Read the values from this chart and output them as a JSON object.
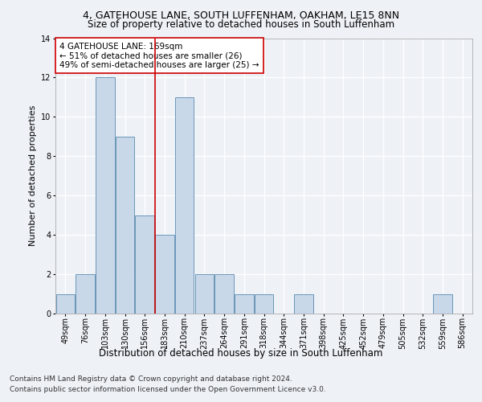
{
  "title1": "4, GATEHOUSE LANE, SOUTH LUFFENHAM, OAKHAM, LE15 8NN",
  "title2": "Size of property relative to detached houses in South Luffenham",
  "xlabel": "Distribution of detached houses by size in South Luffenham",
  "ylabel": "Number of detached properties",
  "categories": [
    "49sqm",
    "76sqm",
    "103sqm",
    "130sqm",
    "156sqm",
    "183sqm",
    "210sqm",
    "237sqm",
    "264sqm",
    "291sqm",
    "318sqm",
    "344sqm",
    "371sqm",
    "398sqm",
    "425sqm",
    "452sqm",
    "479sqm",
    "505sqm",
    "532sqm",
    "559sqm",
    "586sqm"
  ],
  "bar_values": [
    1,
    2,
    12,
    9,
    5,
    4,
    11,
    2,
    2,
    1,
    1,
    0,
    1,
    0,
    0,
    0,
    0,
    0,
    0,
    1,
    0
  ],
  "bar_color": "#c8d8e8",
  "bar_edgecolor": "#5a8ab0",
  "vline_x_index": 4.5,
  "vline_color": "#cc0000",
  "annotation_text": "4 GATEHOUSE LANE: 169sqm\n← 51% of detached houses are smaller (26)\n49% of semi-detached houses are larger (25) →",
  "annotation_box_color": "#ffffff",
  "annotation_box_edgecolor": "#cc0000",
  "ylim": [
    0,
    14
  ],
  "yticks": [
    0,
    2,
    4,
    6,
    8,
    10,
    12,
    14
  ],
  "footer1": "Contains HM Land Registry data © Crown copyright and database right 2024.",
  "footer2": "Contains public sector information licensed under the Open Government Licence v3.0.",
  "background_color": "#eef2f7",
  "plot_background": "#eef2f7",
  "grid_color": "#ffffff",
  "title1_fontsize": 9,
  "title2_fontsize": 8.5,
  "xlabel_fontsize": 8.5,
  "ylabel_fontsize": 8,
  "tick_fontsize": 7,
  "annotation_fontsize": 7.5,
  "footer_fontsize": 6.5
}
